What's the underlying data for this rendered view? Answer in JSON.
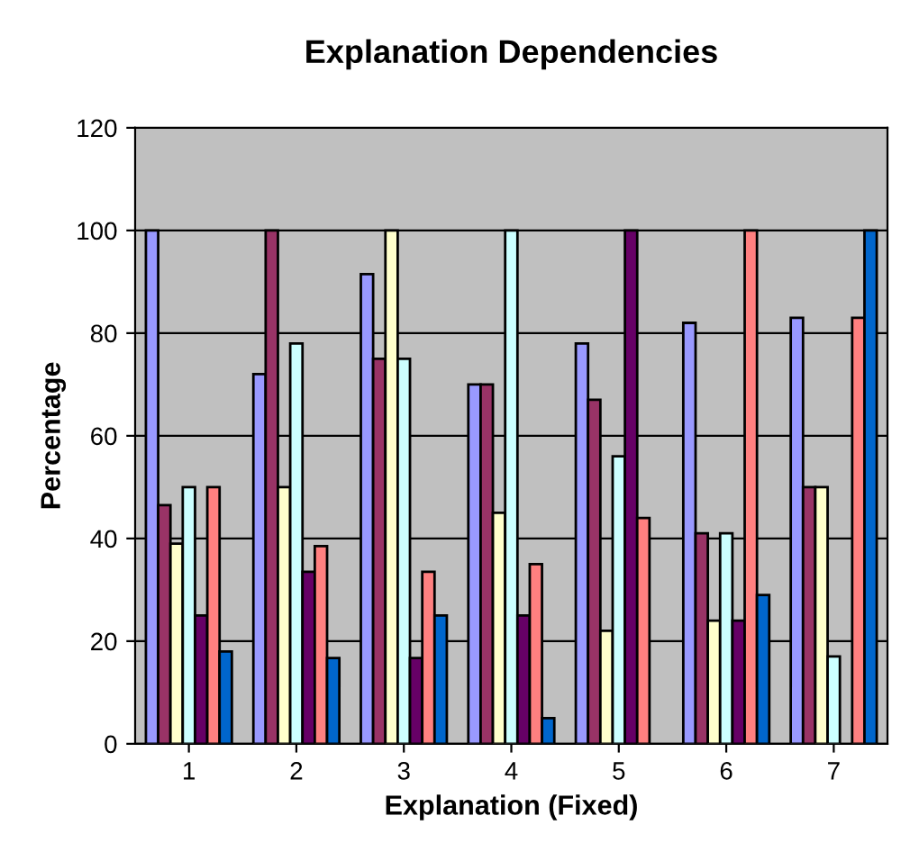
{
  "chart_data": {
    "type": "bar",
    "title": "Explanation Dependencies",
    "xlabel": "Explanation (Fixed)",
    "ylabel": "Percentage",
    "categories": [
      "1",
      "2",
      "3",
      "4",
      "5",
      "6",
      "7"
    ],
    "series": [
      {
        "color": "#9999ff",
        "values": [
          100,
          72,
          91.5,
          70,
          78,
          82,
          83
        ]
      },
      {
        "color": "#993366",
        "values": [
          46.5,
          100,
          75,
          70,
          67,
          41,
          50
        ]
      },
      {
        "color": "#ffffcc",
        "values": [
          39,
          50,
          100,
          45,
          22,
          24,
          50
        ]
      },
      {
        "color": "#ccffff",
        "values": [
          50,
          78,
          75,
          100,
          56,
          41,
          17
        ]
      },
      {
        "color": "#660066",
        "values": [
          25,
          33.5,
          16.7,
          25,
          100,
          24,
          null
        ]
      },
      {
        "color": "#ff8080",
        "values": [
          50,
          38.5,
          33.5,
          35,
          44,
          100,
          83
        ]
      },
      {
        "color": "#0066cc",
        "values": [
          18,
          16.7,
          25,
          5,
          null,
          29,
          100
        ]
      }
    ],
    "ylim": [
      0,
      120
    ],
    "yticks": [
      0,
      20,
      40,
      60,
      80,
      100,
      120
    ],
    "grid": "y",
    "legend": false
  }
}
